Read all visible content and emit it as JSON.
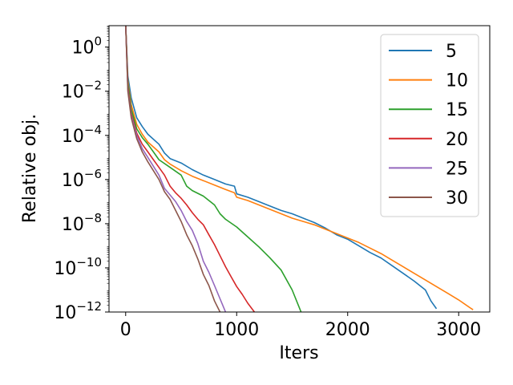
{
  "chart_data": {
    "type": "line",
    "title": "",
    "xlabel": "Iters",
    "ylabel": "Relative obj.",
    "xlim": [
      -150,
      3280
    ],
    "ylog": true,
    "ylim_log10": [
      -12,
      0.97
    ],
    "grid": false,
    "legend_position": "top-right",
    "x_ticks": [
      0,
      1000,
      2000,
      3000
    ],
    "x_tick_labels": [
      "0",
      "1000",
      "2000",
      "3000"
    ],
    "y_ticks_log10": [
      0,
      -2,
      -4,
      -6,
      -8,
      -10,
      -12
    ],
    "y_tick_labels": [
      {
        "base": "10",
        "exp": "0"
      },
      {
        "base": "10",
        "exp": "−2"
      },
      {
        "base": "10",
        "exp": "−4"
      },
      {
        "base": "10",
        "exp": "−6"
      },
      {
        "base": "10",
        "exp": "−8"
      },
      {
        "base": "10",
        "exp": "−10"
      },
      {
        "base": "10",
        "exp": "−12"
      }
    ],
    "series": [
      {
        "name": "5",
        "color": "#1f77b4",
        "x": [
          0,
          20,
          50,
          100,
          150,
          200,
          300,
          350,
          400,
          500,
          600,
          700,
          800,
          900,
          980,
          1000,
          1100,
          1200,
          1300,
          1400,
          1500,
          1600,
          1700,
          1800,
          1900,
          2000,
          2100,
          2200,
          2300,
          2400,
          2500,
          2600,
          2700,
          2750,
          2800
        ],
        "y": [
          1.0,
          -1.3,
          -2.3,
          -3.2,
          -3.6,
          -3.95,
          -4.4,
          -4.8,
          -5.05,
          -5.25,
          -5.55,
          -5.8,
          -6.0,
          -6.2,
          -6.3,
          -6.65,
          -6.8,
          -7.0,
          -7.2,
          -7.4,
          -7.55,
          -7.75,
          -7.95,
          -8.2,
          -8.5,
          -8.7,
          -9.0,
          -9.3,
          -9.55,
          -9.9,
          -10.25,
          -10.6,
          -11.0,
          -11.5,
          -11.85
        ]
      },
      {
        "name": "10",
        "color": "#ff7f0e",
        "x": [
          0,
          20,
          50,
          100,
          150,
          200,
          300,
          350,
          400,
          500,
          600,
          700,
          800,
          900,
          980,
          1000,
          1100,
          1200,
          1300,
          1400,
          1500,
          1600,
          1700,
          1800,
          1900,
          2000,
          2100,
          2200,
          2300,
          2400,
          2500,
          2600,
          2700,
          2800,
          2900,
          3000,
          3100,
          3130
        ],
        "y": [
          1.0,
          -1.5,
          -2.6,
          -3.5,
          -3.95,
          -4.3,
          -4.75,
          -5.1,
          -5.3,
          -5.6,
          -5.85,
          -6.05,
          -6.25,
          -6.45,
          -6.6,
          -6.8,
          -6.95,
          -7.15,
          -7.35,
          -7.55,
          -7.75,
          -7.9,
          -8.05,
          -8.25,
          -8.45,
          -8.65,
          -8.85,
          -9.1,
          -9.35,
          -9.65,
          -9.95,
          -10.25,
          -10.55,
          -10.85,
          -11.15,
          -11.45,
          -11.8,
          -11.9
        ]
      },
      {
        "name": "15",
        "color": "#2ca02c",
        "x": [
          0,
          20,
          50,
          100,
          150,
          200,
          250,
          300,
          400,
          500,
          550,
          600,
          700,
          800,
          850,
          900,
          1000,
          1100,
          1200,
          1300,
          1400,
          1500,
          1580
        ],
        "y": [
          1.0,
          -1.6,
          -2.8,
          -3.7,
          -4.1,
          -4.4,
          -4.75,
          -5.1,
          -5.45,
          -5.8,
          -6.3,
          -6.5,
          -6.75,
          -7.15,
          -7.55,
          -7.8,
          -8.15,
          -8.6,
          -9.05,
          -9.55,
          -10.1,
          -11.0,
          -12.0
        ]
      },
      {
        "name": "20",
        "color": "#d62728",
        "x": [
          0,
          20,
          50,
          100,
          150,
          200,
          250,
          300,
          350,
          400,
          450,
          500,
          550,
          600,
          650,
          700,
          750,
          800,
          850,
          900,
          950,
          1000,
          1050,
          1100,
          1160
        ],
        "y": [
          1.0,
          -1.8,
          -3.0,
          -3.9,
          -4.4,
          -4.75,
          -5.1,
          -5.45,
          -5.8,
          -6.3,
          -6.6,
          -6.85,
          -7.15,
          -7.5,
          -7.8,
          -8.05,
          -8.5,
          -8.95,
          -9.45,
          -9.95,
          -10.4,
          -10.85,
          -11.2,
          -11.6,
          -12.0
        ]
      },
      {
        "name": "25",
        "color": "#9467bd",
        "x": [
          0,
          20,
          50,
          100,
          150,
          200,
          250,
          300,
          350,
          400,
          450,
          500,
          550,
          600,
          650,
          700,
          750,
          800,
          850,
          900
        ],
        "y": [
          1.0,
          -1.9,
          -3.1,
          -4.0,
          -4.6,
          -5.0,
          -5.4,
          -5.8,
          -6.4,
          -6.7,
          -7.0,
          -7.4,
          -7.9,
          -8.3,
          -8.9,
          -9.7,
          -10.2,
          -10.8,
          -11.4,
          -12.0
        ]
      },
      {
        "name": "30",
        "color": "#8c564b",
        "x": [
          0,
          20,
          50,
          100,
          150,
          200,
          250,
          300,
          350,
          400,
          450,
          500,
          550,
          600,
          650,
          700,
          750,
          800,
          850
        ],
        "y": [
          1.0,
          -2.0,
          -3.2,
          -4.15,
          -4.75,
          -5.2,
          -5.6,
          -6.0,
          -6.55,
          -6.9,
          -7.4,
          -7.9,
          -8.5,
          -9.0,
          -9.6,
          -10.3,
          -10.8,
          -11.5,
          -12.0
        ]
      }
    ]
  }
}
